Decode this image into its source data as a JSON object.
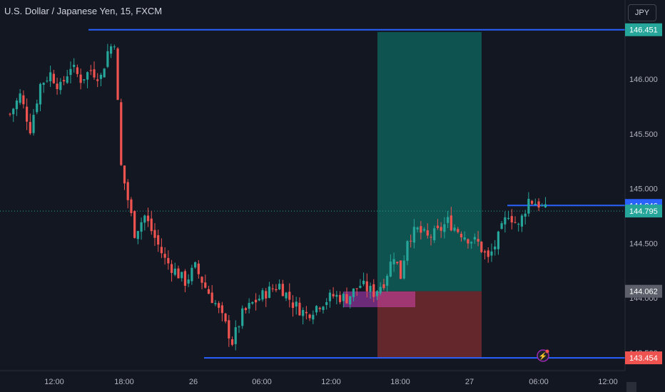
{
  "header": {
    "title": "U.S. Dollar / Japanese Yen, 15, FXCM"
  },
  "currency_button": {
    "label": "JPY"
  },
  "colors": {
    "background": "#131722",
    "up": "#26a69a",
    "down": "#ef5350",
    "line": "#2962ff",
    "target_zone": "#0f5a56",
    "stop_zone": "#6e2a2e",
    "entry_box": "#7b2f87",
    "axis_text": "#b2b5be"
  },
  "chart_data": {
    "type": "candlestick",
    "symbol": "USD/JPY",
    "timeframe": "15",
    "source": "FXCM",
    "ylim": [
      143.43,
      146.56
    ],
    "y_ticks": [
      "146.000",
      "145.500",
      "145.000",
      "144.500",
      "144.000",
      "143.500"
    ],
    "x_ticks": [
      "12:00",
      "18:00",
      "26",
      "06:00",
      "12:00",
      "18:00",
      "27",
      "06:00",
      "12:00"
    ],
    "price_labels": [
      {
        "value": "146.451",
        "kind": "resistance"
      },
      {
        "value": "144.846",
        "kind": "level"
      },
      {
        "value": "144.795",
        "kind": "last"
      },
      {
        "value": "144.062",
        "kind": "entry"
      },
      {
        "value": "143.454",
        "kind": "support"
      }
    ],
    "horizontal_lines": [
      146.451,
      144.846,
      143.454
    ],
    "current_price": 144.795,
    "position": {
      "entry": 144.062,
      "target": 146.43,
      "stop": 143.454
    },
    "close_path": [
      [
        0,
        145.68
      ],
      [
        3,
        145.85
      ],
      [
        6,
        145.55
      ],
      [
        9,
        145.95
      ],
      [
        12,
        146.05
      ],
      [
        15,
        145.92
      ],
      [
        18,
        146.12
      ],
      [
        21,
        146.0
      ],
      [
        24,
        146.08
      ],
      [
        27,
        146.02
      ],
      [
        29,
        146.25
      ],
      [
        31,
        146.35
      ],
      [
        33,
        145.2
      ],
      [
        35,
        144.9
      ],
      [
        37,
        144.6
      ],
      [
        40,
        144.75
      ],
      [
        43,
        144.55
      ],
      [
        46,
        144.35
      ],
      [
        49,
        144.25
      ],
      [
        52,
        144.15
      ],
      [
        55,
        144.28
      ],
      [
        58,
        144.1
      ],
      [
        61,
        143.95
      ],
      [
        64,
        143.75
      ],
      [
        66,
        143.6
      ],
      [
        69,
        143.85
      ],
      [
        72,
        143.95
      ],
      [
        76,
        144.05
      ],
      [
        80,
        144.12
      ],
      [
        84,
        143.95
      ],
      [
        88,
        143.85
      ],
      [
        92,
        143.95
      ],
      [
        96,
        144.02
      ],
      [
        100,
        144.0
      ],
      [
        104,
        144.12
      ],
      [
        108,
        144.05
      ],
      [
        111,
        144.15
      ],
      [
        114,
        144.4
      ],
      [
        116,
        144.2
      ],
      [
        118,
        144.55
      ],
      [
        121,
        144.62
      ],
      [
        124,
        144.55
      ],
      [
        127,
        144.6
      ],
      [
        130,
        144.7
      ],
      [
        133,
        144.62
      ],
      [
        136,
        144.55
      ],
      [
        139,
        144.5
      ],
      [
        142,
        144.35
      ],
      [
        145,
        144.55
      ],
      [
        148,
        144.78
      ],
      [
        151,
        144.65
      ],
      [
        154,
        144.9
      ],
      [
        157,
        144.86
      ],
      [
        159,
        144.8
      ]
    ]
  }
}
